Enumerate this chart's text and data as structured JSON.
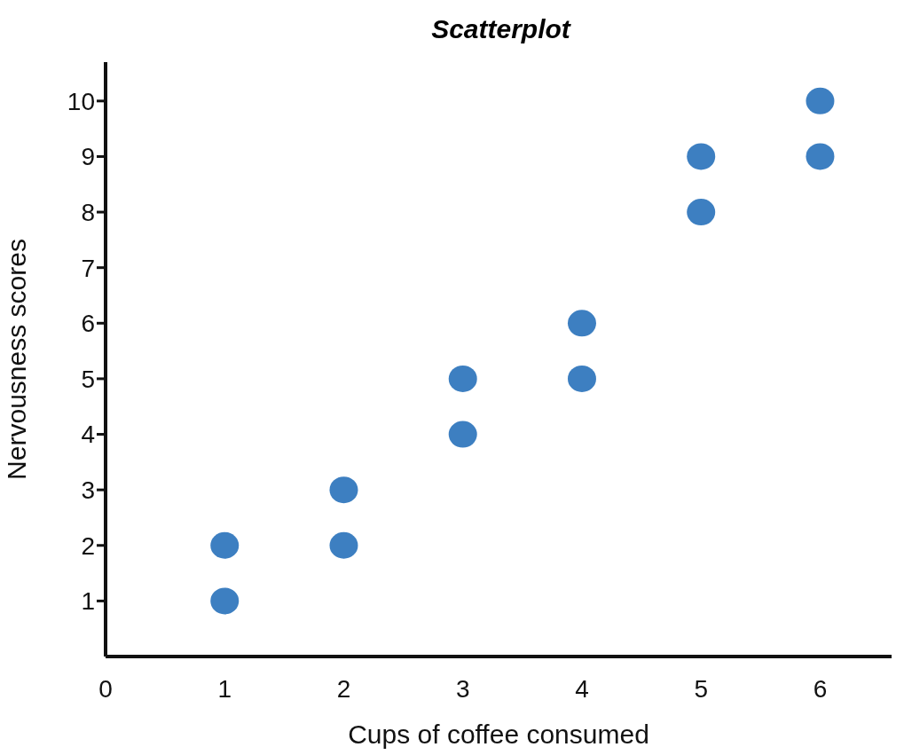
{
  "chart_data": {
    "type": "scatter",
    "title": "Scatterplot",
    "xlabel": "Cups of coffee consumed",
    "ylabel": "Nervousness scores",
    "x": [
      1,
      1,
      2,
      2,
      3,
      3,
      4,
      4,
      5,
      5,
      6,
      6
    ],
    "values": [
      1,
      2,
      2,
      3,
      4,
      5,
      5,
      6,
      8,
      9,
      9,
      10
    ],
    "color": "#3d7fc1",
    "xlim": [
      0,
      6.6
    ],
    "ylim": [
      0,
      10.7
    ],
    "xticks": [
      0,
      1,
      2,
      3,
      4,
      5,
      6
    ],
    "yticks": [
      1,
      2,
      3,
      4,
      5,
      6,
      7,
      8,
      9,
      10
    ],
    "grid": false,
    "marker": "circle"
  }
}
